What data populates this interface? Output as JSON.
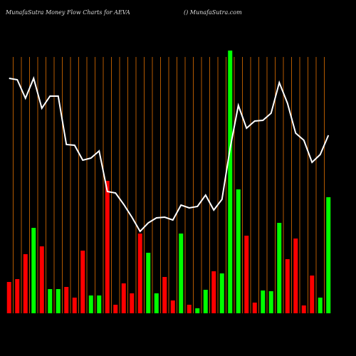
{
  "chart_data": {
    "type": "bar-line",
    "title": "MunafaSutra  Money Flow  Charts for AEVA",
    "subtitle": "() MunafaSutra.com",
    "categories": [
      null,
      null,
      null,
      null,
      null,
      null,
      null,
      null,
      null,
      null,
      null,
      null,
      null,
      null,
      null,
      null,
      null,
      null,
      null,
      null,
      null,
      null,
      null,
      null,
      null,
      null,
      null,
      null,
      null,
      null,
      null,
      null,
      null,
      null,
      null,
      null,
      null,
      null,
      null,
      null
    ],
    "bars": {
      "values": [
        44,
        48,
        83,
        120,
        94,
        34,
        34,
        37,
        22,
        88,
        25,
        25,
        186,
        12,
        42,
        28,
        112,
        85,
        28,
        51,
        18,
        112,
        12,
        7,
        33,
        59,
        56,
        369,
        174,
        109,
        15,
        32,
        31,
        127,
        76,
        105,
        11,
        53,
        22,
        163
      ],
      "colors": [
        "#ff0000",
        "#ff0000",
        "#ff0000",
        "#00ff00",
        "#ff0000",
        "#00ff00",
        "#00ff00",
        "#ff0000",
        "#ff0000",
        "#ff0000",
        "#00ff00",
        "#00ff00",
        "#ff0000",
        "#ff0000",
        "#ff0000",
        "#ff0000",
        "#ff0000",
        "#00ff00",
        "#00ff00",
        "#ff0000",
        "#ff0000",
        "#00ff00",
        "#ff0000",
        "#00ff00",
        "#00ff00",
        "#ff0000",
        "#00ff00",
        "#00ff00",
        "#00ff00",
        "#ff0000",
        "#ff0000",
        "#00ff00",
        "#00ff00",
        "#00ff00",
        "#ff0000",
        "#ff0000",
        "#ff0000",
        "#ff0000",
        "#00ff00",
        "#00ff00"
      ]
    },
    "line": {
      "color": "#ffffff",
      "values": [
        330,
        328,
        302,
        330,
        288,
        305,
        305,
        237,
        236,
        215,
        218,
        228,
        171,
        169,
        153,
        135,
        115,
        127,
        134,
        135,
        131,
        152,
        148,
        150,
        166,
        145,
        160,
        232,
        292,
        260,
        270,
        271,
        281,
        324,
        295,
        253,
        243,
        212,
        223,
        250
      ]
    },
    "ylim": [
      0,
      370
    ]
  }
}
